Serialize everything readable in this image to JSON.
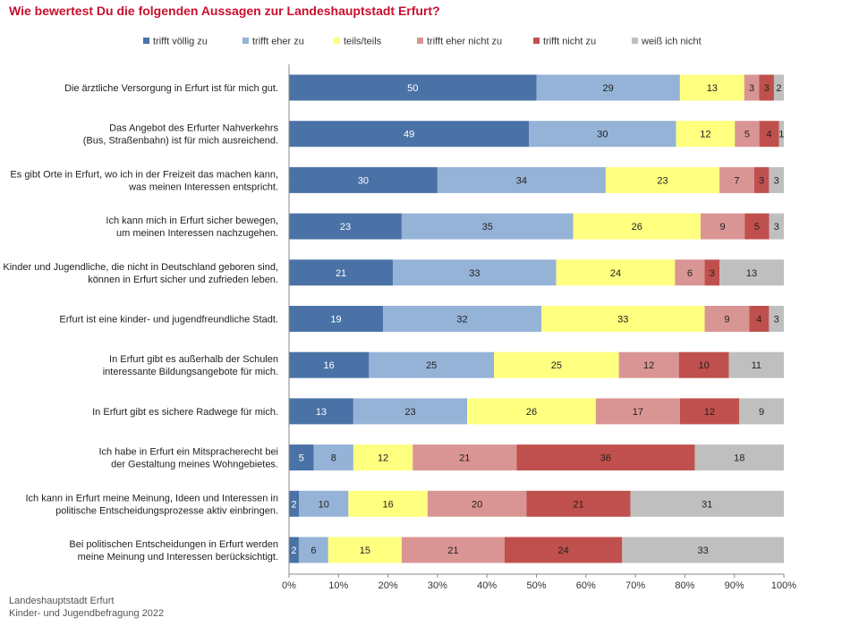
{
  "chart_data": {
    "type": "bar",
    "orientation": "horizontal",
    "stacked": true,
    "title": "Wie bewertest Du die folgenden Aussagen zur Landeshauptstadt Erfurt?",
    "legend_position": "top",
    "categories": [
      [
        "Die ärztliche Versorgung in Erfurt ist für mich gut."
      ],
      [
        "Das Angebot des Erfurter Nahverkehrs",
        "(Bus, Straßenbahn) ist für mich ausreichend."
      ],
      [
        "Es gibt Orte in Erfurt, wo ich in der Freizeit das machen kann,",
        "was meinen Interessen entspricht."
      ],
      [
        "Ich kann mich in Erfurt sicher bewegen,",
        "um meinen Interessen nachzugehen."
      ],
      [
        "Kinder und Jugendliche, die nicht in Deutschland geboren sind,",
        "können in Erfurt sicher und zufrieden leben."
      ],
      [
        "Erfurt ist eine kinder- und jugendfreundliche Stadt."
      ],
      [
        "In Erfurt gibt es außerhalb der Schulen",
        "interessante Bildungsangebote für mich."
      ],
      [
        "In Erfurt gibt es sichere Radwege für mich."
      ],
      [
        "Ich habe in Erfurt ein Mitspracherecht bei",
        "der Gestaltung meines Wohngebietes."
      ],
      [
        "Ich kann in Erfurt meine Meinung, Ideen und Interessen in",
        "politische Entscheidungsprozesse aktiv einbringen."
      ],
      [
        "Bei politischen Entscheidungen in Erfurt werden",
        "meine Meinung und Interessen berücksichtigt."
      ]
    ],
    "series": [
      {
        "name": "trifft völlig zu",
        "color": "#4a72a6",
        "label_color": "#ffffff",
        "values": [
          50,
          49,
          30,
          23,
          21,
          19,
          16,
          13,
          5,
          2,
          2
        ]
      },
      {
        "name": "trifft eher zu",
        "color": "#95b3d7",
        "label_color": "#222222",
        "values": [
          29,
          30,
          34,
          35,
          33,
          32,
          25,
          23,
          8,
          10,
          6
        ]
      },
      {
        "name": "teils/teils",
        "color": "#ffff80",
        "label_color": "#222222",
        "values": [
          13,
          12,
          23,
          26,
          24,
          33,
          25,
          26,
          12,
          16,
          15
        ]
      },
      {
        "name": "trifft eher nicht zu",
        "color": "#d99594",
        "label_color": "#222222",
        "values": [
          3,
          5,
          7,
          9,
          6,
          9,
          12,
          17,
          21,
          20,
          21
        ]
      },
      {
        "name": "trifft nicht zu",
        "color": "#c0504d",
        "label_color": "#222222",
        "values": [
          3,
          4,
          3,
          5,
          3,
          4,
          10,
          12,
          36,
          21,
          24
        ]
      },
      {
        "name": "weiß ich nicht",
        "color": "#bfbfbf",
        "label_color": "#222222",
        "values": [
          2,
          1,
          3,
          3,
          13,
          3,
          11,
          9,
          18,
          31,
          33
        ]
      }
    ],
    "xlim": [
      0,
      100
    ],
    "xticks": [
      "0%",
      "10%",
      "20%",
      "30%",
      "40%",
      "50%",
      "60%",
      "70%",
      "80%",
      "90%",
      "100%"
    ],
    "grid": false
  },
  "footer": {
    "line1": "Landeshauptstadt Erfurt",
    "line2": "Kinder- und Jugendbefragung 2022"
  }
}
